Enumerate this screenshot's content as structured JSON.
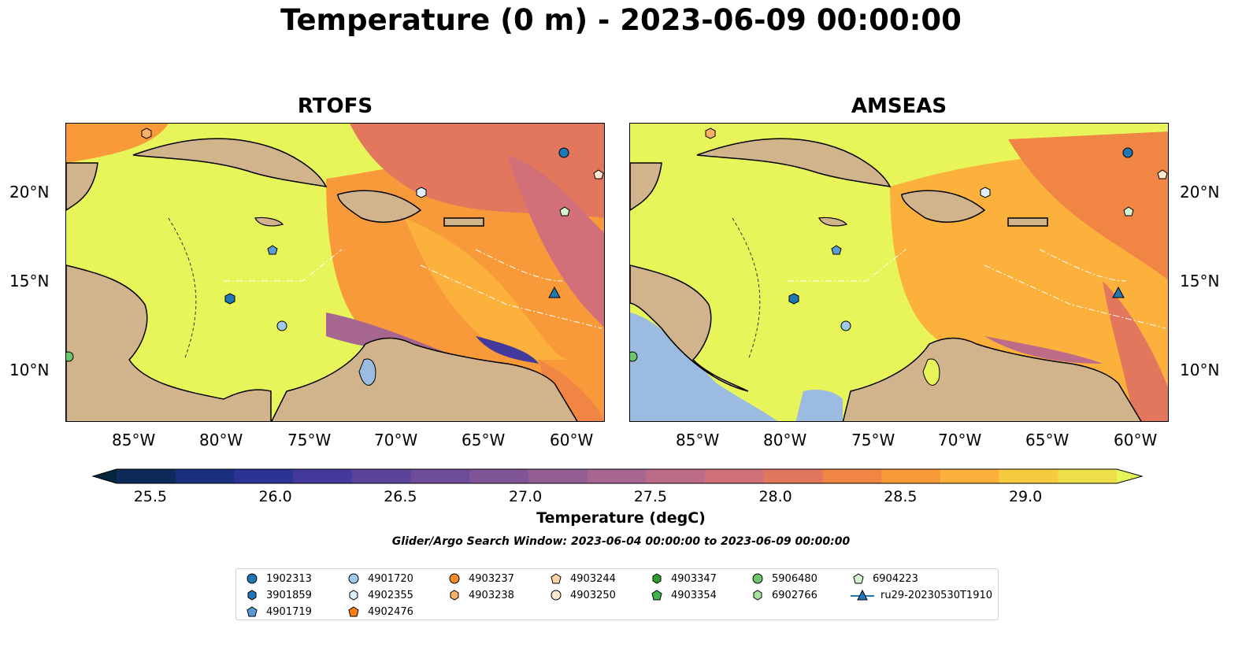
{
  "title": "Temperature (0 m) - 2023-06-09 00:00:00",
  "panels": [
    {
      "title": "RTOFS"
    },
    {
      "title": "AMSEAS"
    }
  ],
  "axes": {
    "lon_ticks": [
      "85°W",
      "80°W",
      "75°W",
      "70°W",
      "65°W",
      "60°W"
    ],
    "lat_ticks": [
      "20°N",
      "15°N",
      "10°N"
    ]
  },
  "colorbar": {
    "label": "Temperature (degC)",
    "ticks": [
      "25.5",
      "26.0",
      "26.5",
      "27.0",
      "27.5",
      "28.0",
      "28.5",
      "29.0"
    ],
    "range": [
      25.375,
      29.375
    ],
    "colors": [
      "#04263d",
      "#0e2a58",
      "#1b2f7f",
      "#2b3397",
      "#433a9b",
      "#59449a",
      "#6d4d99",
      "#7f5597",
      "#935f93",
      "#a76690",
      "#bc6b88",
      "#d27079",
      "#e3775e",
      "#f08544",
      "#f99a3a",
      "#fbb13b",
      "#f7cb40",
      "#ecdf49",
      "#e8f55a"
    ]
  },
  "search_window": "Glider/Argo Search Window: 2023-06-04 00:00:00 to 2023-06-09 00:00:00",
  "legend": [
    {
      "label": "1902313",
      "marker": "circle",
      "color": "#1f77b4"
    },
    {
      "label": "3901859",
      "marker": "hexagon",
      "color": "#1f77b4"
    },
    {
      "label": "4901719",
      "marker": "pentagon",
      "color": "#5b9bd5"
    },
    {
      "label": "4901720",
      "marker": "circle",
      "color": "#9ec9e8"
    },
    {
      "label": "4902355",
      "marker": "hexagon",
      "color": "#dceefa"
    },
    {
      "label": "4902476",
      "marker": "pentagon",
      "color": "#ff7f0e"
    },
    {
      "label": "4903237",
      "marker": "circle",
      "color": "#f58a2b"
    },
    {
      "label": "4903238",
      "marker": "hexagon",
      "color": "#fbb06a"
    },
    {
      "label": "4903244",
      "marker": "pentagon",
      "color": "#fdd4a4"
    },
    {
      "label": "4903250",
      "marker": "circle",
      "color": "#fde7cf"
    },
    {
      "label": "4903347",
      "marker": "hexagon",
      "color": "#2ca02c"
    },
    {
      "label": "4903354",
      "marker": "pentagon",
      "color": "#3fb44a"
    },
    {
      "label": "5906480",
      "marker": "circle",
      "color": "#6cc46c"
    },
    {
      "label": "6902766",
      "marker": "hexagon",
      "color": "#a7e3a0"
    },
    {
      "label": "6904223",
      "marker": "pentagon",
      "color": "#d4f5cf"
    },
    {
      "label": "ru29-20230530T1910",
      "marker": "triangle-line",
      "color": "#1f77b4"
    }
  ]
}
